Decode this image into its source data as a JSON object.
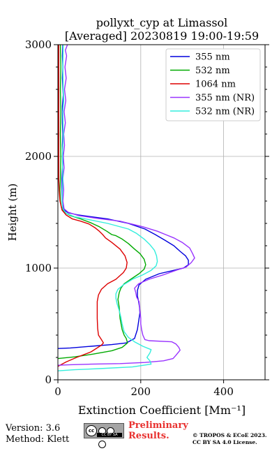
{
  "chart_data": {
    "type": "line",
    "title": "pollyxt_cyp at Limassol",
    "subtitle": "[Averaged] 20230819 19:00-19:59",
    "xlabel": "Extinction Coefficient [Mm⁻¹]",
    "ylabel": "Height (m)",
    "xlim": [
      0,
      500
    ],
    "ylim": [
      0,
      3000
    ],
    "x_ticks": [
      0,
      200,
      400
    ],
    "x_tick_labels": [
      "0",
      "200",
      "400"
    ],
    "y_ticks": [
      0,
      1000,
      2000,
      3000
    ],
    "y_tick_labels": [
      "0",
      "1000",
      "2000",
      "3000"
    ],
    "grid": true,
    "legend_position": "top-right",
    "series": [
      {
        "name": "355 nm",
        "color": "#0000dd",
        "points": [
          [
            0,
            280
          ],
          [
            30,
            285
          ],
          [
            80,
            300
          ],
          [
            130,
            315
          ],
          [
            165,
            330
          ],
          [
            185,
            370
          ],
          [
            192,
            450
          ],
          [
            196,
            550
          ],
          [
            198,
            600
          ],
          [
            197,
            650
          ],
          [
            195,
            700
          ],
          [
            192,
            750
          ],
          [
            192,
            800
          ],
          [
            196,
            850
          ],
          [
            212,
            900
          ],
          [
            245,
            950
          ],
          [
            280,
            980
          ],
          [
            303,
            1000
          ],
          [
            315,
            1030
          ],
          [
            315,
            1070
          ],
          [
            308,
            1110
          ],
          [
            295,
            1150
          ],
          [
            280,
            1200
          ],
          [
            258,
            1250
          ],
          [
            235,
            1300
          ],
          [
            210,
            1350
          ],
          [
            170,
            1400
          ],
          [
            120,
            1440
          ],
          [
            80,
            1460
          ],
          [
            50,
            1475
          ],
          [
            25,
            1495
          ],
          [
            15,
            1520
          ],
          [
            11,
            1570
          ],
          [
            10,
            1650
          ],
          [
            10,
            1800
          ],
          [
            12,
            1950
          ],
          [
            11,
            2100
          ],
          [
            12,
            2200
          ],
          [
            11,
            2300
          ],
          [
            11,
            2450
          ],
          [
            13,
            2550
          ],
          [
            11,
            2700
          ],
          [
            12,
            2800
          ],
          [
            11,
            2900
          ],
          [
            12,
            3000
          ]
        ]
      },
      {
        "name": "532 nm",
        "color": "#00aa00",
        "points": [
          [
            0,
            190
          ],
          [
            40,
            205
          ],
          [
            85,
            230
          ],
          [
            130,
            260
          ],
          [
            155,
            290
          ],
          [
            168,
            330
          ],
          [
            165,
            370
          ],
          [
            160,
            400
          ],
          [
            155,
            450
          ],
          [
            150,
            550
          ],
          [
            148,
            650
          ],
          [
            145,
            720
          ],
          [
            148,
            780
          ],
          [
            152,
            820
          ],
          [
            160,
            860
          ],
          [
            176,
            900
          ],
          [
            196,
            950
          ],
          [
            208,
            990
          ],
          [
            212,
            1030
          ],
          [
            208,
            1080
          ],
          [
            198,
            1130
          ],
          [
            185,
            1170
          ],
          [
            170,
            1220
          ],
          [
            155,
            1260
          ],
          [
            140,
            1290
          ],
          [
            130,
            1300
          ],
          [
            118,
            1330
          ],
          [
            100,
            1370
          ],
          [
            80,
            1405
          ],
          [
            55,
            1440
          ],
          [
            30,
            1470
          ],
          [
            15,
            1500
          ],
          [
            8,
            1550
          ],
          [
            6,
            1600
          ],
          [
            5,
            1700
          ],
          [
            6,
            1800
          ],
          [
            7,
            2000
          ],
          [
            6,
            2200
          ],
          [
            7,
            2400
          ],
          [
            6,
            2600
          ],
          [
            7,
            2800
          ],
          [
            6,
            3000
          ]
        ]
      },
      {
        "name": "1064 nm",
        "color": "#dd0000",
        "points": [
          [
            0,
            120
          ],
          [
            20,
            160
          ],
          [
            45,
            200
          ],
          [
            80,
            250
          ],
          [
            105,
            310
          ],
          [
            110,
            330
          ],
          [
            105,
            360
          ],
          [
            98,
            400
          ],
          [
            96,
            460
          ],
          [
            95,
            550
          ],
          [
            95,
            640
          ],
          [
            95,
            700
          ],
          [
            98,
            760
          ],
          [
            105,
            810
          ],
          [
            120,
            860
          ],
          [
            140,
            900
          ],
          [
            158,
            960
          ],
          [
            165,
            1000
          ],
          [
            167,
            1050
          ],
          [
            162,
            1110
          ],
          [
            150,
            1170
          ],
          [
            130,
            1230
          ],
          [
            115,
            1270
          ],
          [
            108,
            1300
          ],
          [
            100,
            1330
          ],
          [
            90,
            1360
          ],
          [
            75,
            1395
          ],
          [
            55,
            1420
          ],
          [
            35,
            1440
          ],
          [
            20,
            1475
          ],
          [
            10,
            1520
          ],
          [
            5,
            1600
          ],
          [
            3,
            1700
          ],
          [
            2,
            1800
          ],
          [
            2,
            2000
          ],
          [
            2,
            2200
          ],
          [
            2,
            2400
          ],
          [
            2,
            2600
          ],
          [
            2,
            2800
          ],
          [
            2,
            3000
          ]
        ]
      },
      {
        "name": "355 nm (NR)",
        "color": "#9933ff",
        "points": [
          [
            0,
            130
          ],
          [
            30,
            135
          ],
          [
            80,
            140
          ],
          [
            150,
            145
          ],
          [
            210,
            155
          ],
          [
            255,
            170
          ],
          [
            278,
            190
          ],
          [
            285,
            220
          ],
          [
            295,
            265
          ],
          [
            292,
            290
          ],
          [
            285,
            320
          ],
          [
            275,
            340
          ],
          [
            220,
            350
          ],
          [
            210,
            360
          ],
          [
            205,
            400
          ],
          [
            202,
            450
          ],
          [
            200,
            500
          ],
          [
            200,
            550
          ],
          [
            198,
            620
          ],
          [
            196,
            700
          ],
          [
            190,
            740
          ],
          [
            188,
            780
          ],
          [
            185,
            820
          ],
          [
            195,
            860
          ],
          [
            220,
            900
          ],
          [
            255,
            940
          ],
          [
            285,
            980
          ],
          [
            310,
            1010
          ],
          [
            322,
            1050
          ],
          [
            330,
            1090
          ],
          [
            325,
            1130
          ],
          [
            318,
            1180
          ],
          [
            300,
            1230
          ],
          [
            280,
            1270
          ],
          [
            260,
            1300
          ],
          [
            240,
            1330
          ],
          [
            205,
            1370
          ],
          [
            150,
            1420
          ],
          [
            95,
            1445
          ],
          [
            50,
            1470
          ],
          [
            25,
            1500
          ],
          [
            15,
            1530
          ],
          [
            12,
            1600
          ],
          [
            14,
            1700
          ],
          [
            12,
            1800
          ],
          [
            15,
            1900
          ],
          [
            13,
            2000
          ],
          [
            16,
            2100
          ],
          [
            14,
            2200
          ],
          [
            18,
            2300
          ],
          [
            15,
            2400
          ],
          [
            19,
            2500
          ],
          [
            16,
            2600
          ],
          [
            20,
            2700
          ],
          [
            17,
            2800
          ],
          [
            21,
            2900
          ],
          [
            18,
            2950
          ],
          [
            23,
            3000
          ]
        ]
      },
      {
        "name": "532 nm (NR)",
        "color": "#33eedd",
        "points": [
          [
            0,
            80
          ],
          [
            40,
            90
          ],
          [
            100,
            100
          ],
          [
            180,
            115
          ],
          [
            225,
            140
          ],
          [
            222,
            170
          ],
          [
            215,
            200
          ],
          [
            222,
            240
          ],
          [
            225,
            270
          ],
          [
            205,
            300
          ],
          [
            185,
            340
          ],
          [
            170,
            380
          ],
          [
            160,
            430
          ],
          [
            155,
            500
          ],
          [
            152,
            560
          ],
          [
            148,
            620
          ],
          [
            143,
            680
          ],
          [
            140,
            730
          ],
          [
            140,
            770
          ],
          [
            145,
            810
          ],
          [
            158,
            850
          ],
          [
            180,
            900
          ],
          [
            205,
            940
          ],
          [
            225,
            980
          ],
          [
            237,
            1020
          ],
          [
            240,
            1060
          ],
          [
            238,
            1110
          ],
          [
            233,
            1160
          ],
          [
            222,
            1210
          ],
          [
            208,
            1260
          ],
          [
            190,
            1310
          ],
          [
            170,
            1350
          ],
          [
            120,
            1400
          ],
          [
            80,
            1430
          ],
          [
            40,
            1460
          ],
          [
            20,
            1490
          ],
          [
            12,
            1530
          ],
          [
            10,
            1600
          ],
          [
            11,
            1700
          ],
          [
            12,
            1800
          ],
          [
            11,
            2000
          ],
          [
            13,
            2200
          ],
          [
            12,
            2400
          ],
          [
            14,
            2500
          ],
          [
            13,
            2600
          ],
          [
            12,
            2800
          ],
          [
            13,
            3000
          ]
        ]
      }
    ]
  },
  "footer": {
    "version": "Version: 3.6",
    "method": "Method: Klett",
    "cc_badge": "CC BY SA",
    "preliminary_line1": "Preliminary",
    "preliminary_line2": "Results.",
    "license_line1": "© TROPOS & ECoE 2023.",
    "license_line2": "CC BY SA 4.0 License."
  }
}
